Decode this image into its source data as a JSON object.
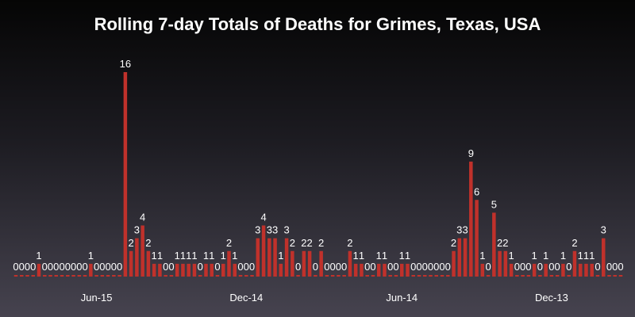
{
  "chart_data": {
    "type": "bar",
    "title": "Rolling 7-day Totals of Deaths for Grimes, Texas, USA",
    "xlabel": "",
    "ylabel": "",
    "ylim": [
      0,
      16
    ],
    "grid": false,
    "legend": "none",
    "bar_color": "#c0312b",
    "x_tick_labels": [
      {
        "label": "Jun-15",
        "index": 14
      },
      {
        "label": "Dec-14",
        "index": 40
      },
      {
        "label": "Jun-14",
        "index": 67
      },
      {
        "label": "Dec-13",
        "index": 93
      }
    ],
    "values": [
      0,
      0,
      0,
      0,
      1,
      0,
      0,
      0,
      0,
      0,
      0,
      0,
      0,
      1,
      0,
      0,
      0,
      0,
      0,
      16,
      2,
      3,
      4,
      2,
      1,
      1,
      0,
      0,
      1,
      1,
      1,
      1,
      0,
      1,
      1,
      0,
      1,
      2,
      1,
      0,
      0,
      0,
      3,
      4,
      3,
      3,
      1,
      3,
      2,
      0,
      2,
      2,
      0,
      2,
      0,
      0,
      0,
      0,
      2,
      1,
      1,
      0,
      0,
      1,
      1,
      0,
      0,
      1,
      1,
      0,
      0,
      0,
      0,
      0,
      0,
      0,
      2,
      3,
      3,
      9,
      6,
      1,
      0,
      5,
      2,
      2,
      1,
      0,
      0,
      0,
      1,
      0,
      1,
      0,
      0,
      1,
      0,
      2,
      1,
      1,
      1,
      0,
      3,
      0,
      0,
      0
    ]
  }
}
